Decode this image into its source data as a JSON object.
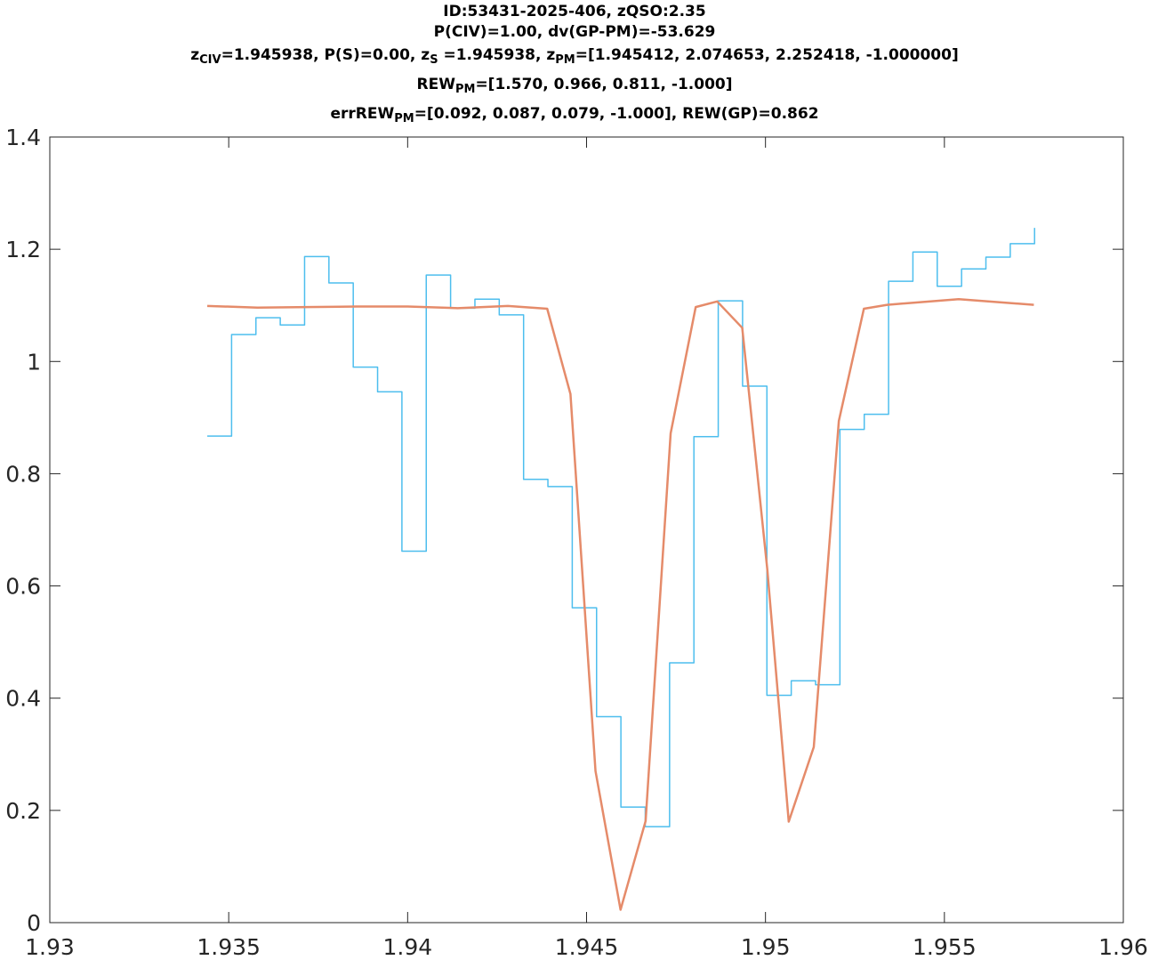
{
  "title_lines": [
    {
      "parts": [
        {
          "t": "ID:53431-2025-406, zQSO:2.35"
        }
      ]
    },
    {
      "parts": [
        {
          "t": "P(CIV)=1.00, dv(GP-PM)=-53.629"
        }
      ]
    },
    {
      "parts": [
        {
          "t": "z"
        },
        {
          "t": "CIV",
          "sub": true
        },
        {
          "t": "=1.945938, P(S)=0.00, z"
        },
        {
          "t": "S",
          "sub": true
        },
        {
          "t": " =1.945938, z"
        },
        {
          "t": "PM",
          "sub": true
        },
        {
          "t": "=[1.945412, 2.074653, 2.252418, -1.000000]"
        }
      ]
    },
    {
      "parts": [
        {
          "t": "REW"
        },
        {
          "t": "PM",
          "sub": true
        },
        {
          "t": "=[1.570, 0.966, 0.811, -1.000]"
        }
      ]
    },
    {
      "parts": [
        {
          "t": "errREW"
        },
        {
          "t": "PM",
          "sub": true
        },
        {
          "t": "=[0.092, 0.087, 0.079, -1.000], REW(GP)=0.862"
        }
      ]
    }
  ],
  "chart_data": {
    "type": "line",
    "xlim": [
      1.93,
      1.96
    ],
    "ylim": [
      0,
      1.4
    ],
    "xticks": [
      1.93,
      1.935,
      1.94,
      1.945,
      1.95,
      1.955,
      1.96
    ],
    "xtick_labels": [
      "1.93",
      "1.935",
      "1.94",
      "1.945",
      "1.95",
      "1.955",
      "1.96"
    ],
    "yticks": [
      0,
      0.2,
      0.4,
      0.6,
      0.8,
      1.0,
      1.2,
      1.4
    ],
    "ytick_labels": [
      "0",
      "0.2",
      "0.4",
      "0.6",
      "0.8",
      "1",
      "1.2",
      "1.4"
    ],
    "grid": false,
    "series": [
      {
        "style": "step",
        "color": "#4DBEEE",
        "x": [
          1.9344,
          1.93508,
          1.93576,
          1.93644,
          1.93712,
          1.9378,
          1.93848,
          1.93916,
          1.93984,
          1.94052,
          1.9412,
          1.94188,
          1.94256,
          1.94324,
          1.94392,
          1.9446,
          1.94528,
          1.94596,
          1.94664,
          1.94732,
          1.948,
          1.94868,
          1.94936,
          1.95004,
          1.95072,
          1.9514,
          1.95208,
          1.95276,
          1.95344,
          1.95412,
          1.9548,
          1.95548,
          1.95616,
          1.95684,
          1.95752
        ],
        "y": [
          0.867,
          1.048,
          1.078,
          1.065,
          1.187,
          1.14,
          0.99,
          0.946,
          0.662,
          1.154,
          1.095,
          1.111,
          1.083,
          0.79,
          0.777,
          0.561,
          0.367,
          0.206,
          0.171,
          0.463,
          0.866,
          1.108,
          0.956,
          0.405,
          0.431,
          0.424,
          0.879,
          0.906,
          1.143,
          1.195,
          1.134,
          1.165,
          1.186,
          1.21,
          1.238
        ]
      },
      {
        "style": "line",
        "color": "#E58B6A",
        "x": [
          1.9344,
          1.9358,
          1.9372,
          1.9386,
          1.94,
          1.9414,
          1.9428,
          1.9439,
          1.94455,
          1.94525,
          1.94595,
          1.94665,
          1.94735,
          1.94805,
          1.94865,
          1.94935,
          1.95005,
          1.95065,
          1.95135,
          1.95205,
          1.95275,
          1.9534,
          1.9554,
          1.9575
        ],
        "y": [
          1.099,
          1.096,
          1.097,
          1.098,
          1.098,
          1.095,
          1.099,
          1.094,
          0.942,
          0.27,
          0.023,
          0.181,
          0.872,
          1.097,
          1.107,
          1.06,
          0.63,
          0.18,
          0.313,
          0.894,
          1.094,
          1.101,
          1.111,
          1.101
        ]
      }
    ]
  }
}
